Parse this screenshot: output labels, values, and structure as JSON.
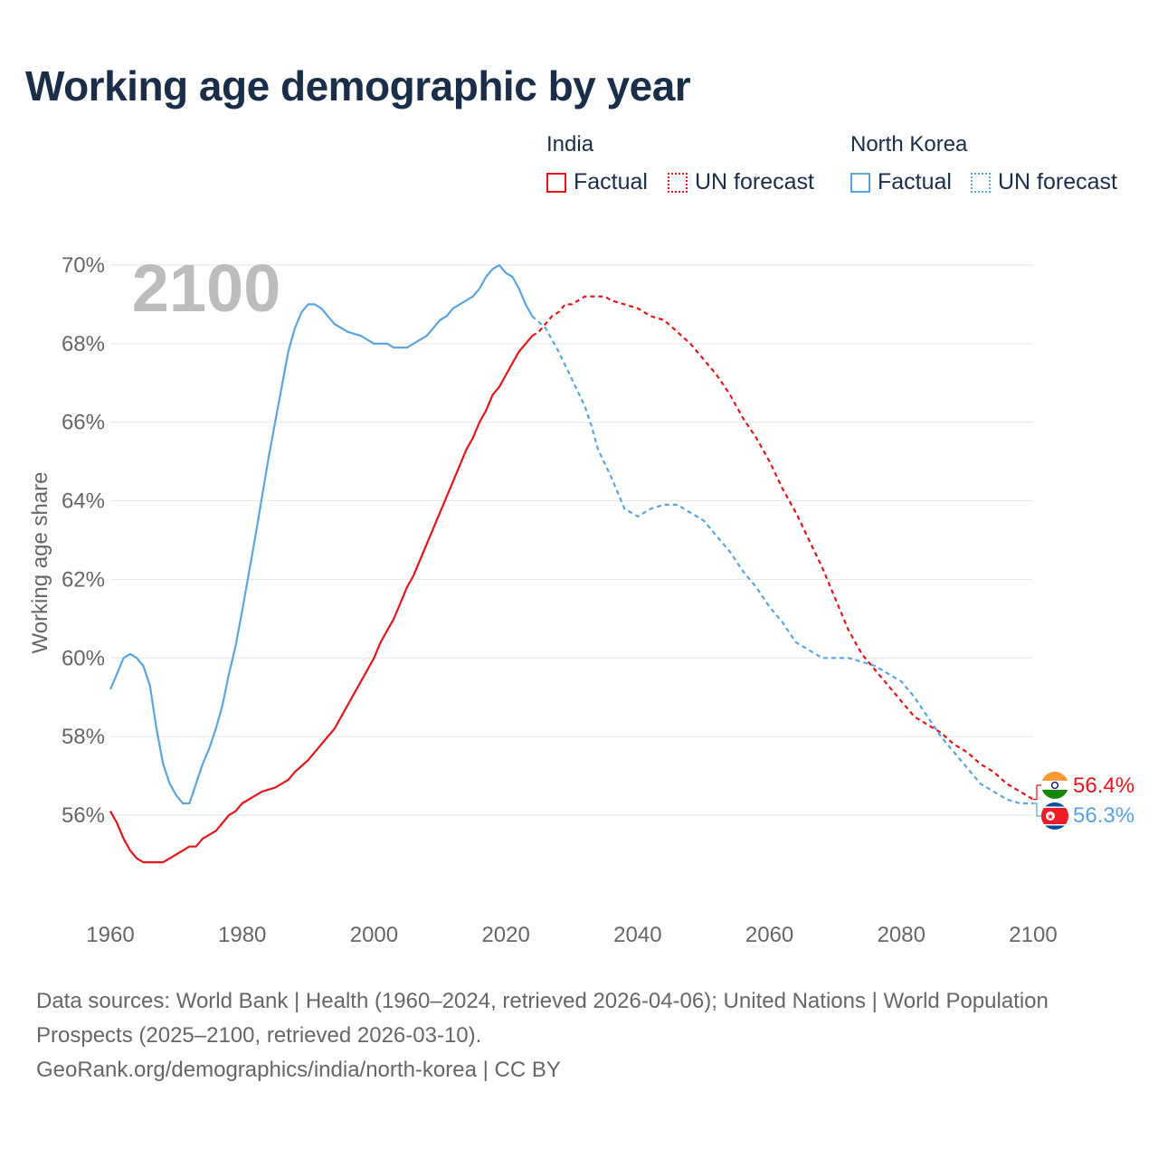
{
  "title": "Working age demographic by year",
  "legend": {
    "groups": [
      {
        "name": "India",
        "factual": "Factual",
        "forecast": "UN forecast",
        "color": "#e8141a"
      },
      {
        "name": "North Korea",
        "factual": "Factual",
        "forecast": "UN forecast",
        "color": "#5aa4e0"
      }
    ]
  },
  "year_watermark": "2100",
  "footer": {
    "sources": "Data sources: World Bank | Health (1960–2024, retrieved 2026-04-06); United Nations | World Population Prospects (2025–2100, retrieved 2026-03-10).",
    "url": "GeoRank.org/demographics/india/north-korea | CC BY"
  },
  "end_labels": [
    {
      "country": "India",
      "flag": "india-flag-icon",
      "text": "56.4%",
      "color": "#e8141a"
    },
    {
      "country": "North Korea",
      "flag": "north-korea-flag-icon",
      "text": "56.3%",
      "color": "#5aa4e0"
    }
  ],
  "chart_data": {
    "type": "line",
    "title": "Working age demographic by year",
    "xlabel": "",
    "ylabel": "Working age share",
    "xlim": [
      1960,
      2100
    ],
    "ylim": [
      54.5,
      70.5
    ],
    "xticks": [
      1960,
      1980,
      2000,
      2020,
      2040,
      2060,
      2080,
      2100
    ],
    "xtick_labels": [
      "1960",
      "1980",
      "2000",
      "2020",
      "2040",
      "2060",
      "2080",
      "2100"
    ],
    "yticks": [
      56,
      58,
      60,
      62,
      64,
      66,
      68,
      70
    ],
    "ytick_labels": [
      "56%",
      "58%",
      "60%",
      "62%",
      "64%",
      "66%",
      "68%",
      "70%"
    ],
    "grid": true,
    "factual_end_year": 2024,
    "series": [
      {
        "name": "India",
        "color": "#e8141a",
        "x": [
          1960,
          1961,
          1962,
          1963,
          1964,
          1965,
          1966,
          1967,
          1968,
          1970,
          1972,
          1973,
          1974,
          1976,
          1978,
          1979,
          1980,
          1982,
          1983,
          1985,
          1987,
          1988,
          1990,
          1992,
          1994,
          1996,
          1998,
          2000,
          2001,
          2003,
          2004,
          2005,
          2006,
          2008,
          2010,
          2012,
          2014,
          2015,
          2016,
          2017,
          2018,
          2019,
          2020,
          2021,
          2022,
          2023,
          2024,
          2025,
          2026,
          2027,
          2028,
          2029,
          2030,
          2032,
          2034,
          2035,
          2036,
          2038,
          2040,
          2042,
          2044,
          2046,
          2048,
          2050,
          2052,
          2054,
          2056,
          2058,
          2060,
          2062,
          2064,
          2066,
          2068,
          2070,
          2072,
          2074,
          2076,
          2078,
          2080,
          2082,
          2084,
          2086,
          2088,
          2090,
          2092,
          2094,
          2096,
          2098,
          2100
        ],
        "y": [
          56.1,
          55.8,
          55.4,
          55.1,
          54.9,
          54.8,
          54.8,
          54.8,
          54.8,
          55.0,
          55.2,
          55.2,
          55.4,
          55.6,
          56.0,
          56.1,
          56.3,
          56.5,
          56.6,
          56.7,
          56.9,
          57.1,
          57.4,
          57.8,
          58.2,
          58.8,
          59.4,
          60.0,
          60.4,
          61.0,
          61.4,
          61.8,
          62.1,
          62.9,
          63.7,
          64.5,
          65.3,
          65.6,
          66.0,
          66.3,
          66.7,
          66.9,
          67.2,
          67.5,
          67.8,
          68.0,
          68.2,
          68.3,
          68.5,
          68.7,
          68.8,
          69.0,
          69.0,
          69.2,
          69.2,
          69.2,
          69.1,
          69.0,
          68.9,
          68.7,
          68.6,
          68.3,
          68.0,
          67.6,
          67.2,
          66.7,
          66.1,
          65.6,
          65.0,
          64.3,
          63.7,
          63.0,
          62.3,
          61.5,
          60.7,
          60.1,
          59.7,
          59.3,
          58.9,
          58.5,
          58.3,
          58.1,
          57.8,
          57.6,
          57.3,
          57.1,
          56.8,
          56.6,
          56.4
        ]
      },
      {
        "name": "North Korea",
        "color": "#5aa4e0",
        "x": [
          1960,
          1961,
          1962,
          1963,
          1964,
          1965,
          1966,
          1967,
          1968,
          1969,
          1970,
          1971,
          1972,
          1973,
          1974,
          1975,
          1976,
          1977,
          1978,
          1979,
          1980,
          1982,
          1984,
          1986,
          1987,
          1988,
          1989,
          1990,
          1991,
          1992,
          1994,
          1996,
          1998,
          2000,
          2002,
          2003,
          2005,
          2007,
          2008,
          2010,
          2011,
          2012,
          2014,
          2015,
          2016,
          2017,
          2018,
          2019,
          2020,
          2021,
          2022,
          2023,
          2024,
          2026,
          2028,
          2030,
          2032,
          2033,
          2034,
          2036,
          2037,
          2038,
          2040,
          2042,
          2044,
          2046,
          2048,
          2050,
          2052,
          2054,
          2056,
          2058,
          2060,
          2062,
          2064,
          2066,
          2068,
          2070,
          2072,
          2074,
          2076,
          2078,
          2080,
          2082,
          2084,
          2086,
          2088,
          2090,
          2092,
          2094,
          2096,
          2098,
          2100
        ],
        "y": [
          59.2,
          59.6,
          60.0,
          60.1,
          60.0,
          59.8,
          59.3,
          58.2,
          57.3,
          56.8,
          56.5,
          56.3,
          56.3,
          56.8,
          57.3,
          57.7,
          58.2,
          58.8,
          59.6,
          60.3,
          61.2,
          63.1,
          65.1,
          66.9,
          67.8,
          68.4,
          68.8,
          69.0,
          69.0,
          68.9,
          68.5,
          68.3,
          68.2,
          68.0,
          68.0,
          67.9,
          67.9,
          68.1,
          68.2,
          68.6,
          68.7,
          68.9,
          69.1,
          69.2,
          69.4,
          69.7,
          69.9,
          70.0,
          69.8,
          69.7,
          69.4,
          69.0,
          68.7,
          68.4,
          67.8,
          67.1,
          66.4,
          65.9,
          65.3,
          64.6,
          64.2,
          63.8,
          63.6,
          63.8,
          63.9,
          63.9,
          63.7,
          63.5,
          63.1,
          62.7,
          62.2,
          61.8,
          61.3,
          60.9,
          60.4,
          60.2,
          60.0,
          60.0,
          60.0,
          59.9,
          59.8,
          59.6,
          59.4,
          59.0,
          58.5,
          58.0,
          57.6,
          57.2,
          56.8,
          56.6,
          56.4,
          56.3,
          56.3
        ]
      }
    ]
  }
}
